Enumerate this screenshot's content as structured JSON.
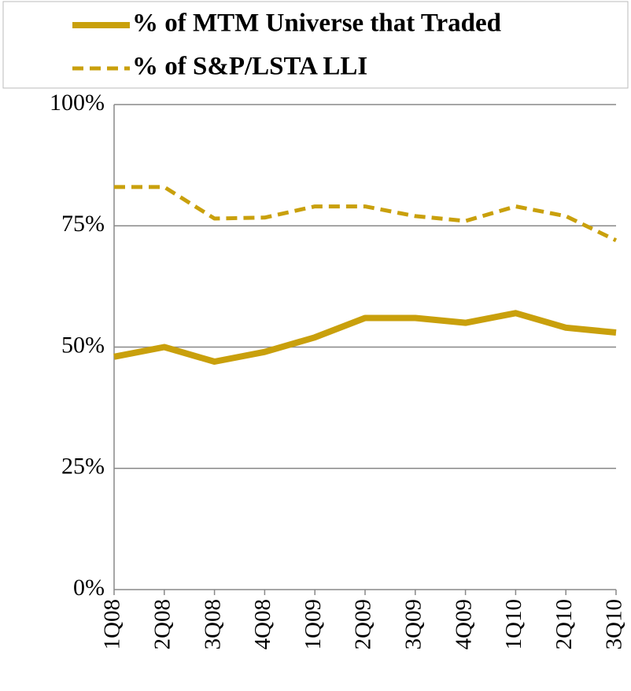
{
  "chart_data": {
    "type": "line",
    "categories": [
      "1Q08",
      "2Q08",
      "3Q08",
      "4Q08",
      "1Q09",
      "2Q09",
      "3Q09",
      "4Q09",
      "1Q10",
      "2Q10",
      "3Q10"
    ],
    "series": [
      {
        "name": "% of MTM Universe that Traded",
        "color": "#c9a00c",
        "dash": "solid",
        "values": [
          48,
          50,
          47,
          49,
          52,
          56,
          56,
          55,
          57,
          54,
          53
        ]
      },
      {
        "name": "% of S&P/LSTA LLI",
        "color": "#c9a00c",
        "dash": "dashed",
        "values": [
          83,
          83,
          76.5,
          76.7,
          79,
          79,
          77,
          76,
          79,
          77,
          72
        ]
      }
    ],
    "ylim": [
      0,
      100
    ],
    "yticks": [
      {
        "value": 0,
        "label": "0%"
      },
      {
        "value": 25,
        "label": "25%"
      },
      {
        "value": 50,
        "label": "50%"
      },
      {
        "value": 75,
        "label": "75%"
      },
      {
        "value": 100,
        "label": "100%"
      }
    ],
    "grid": true,
    "legend": "top"
  }
}
